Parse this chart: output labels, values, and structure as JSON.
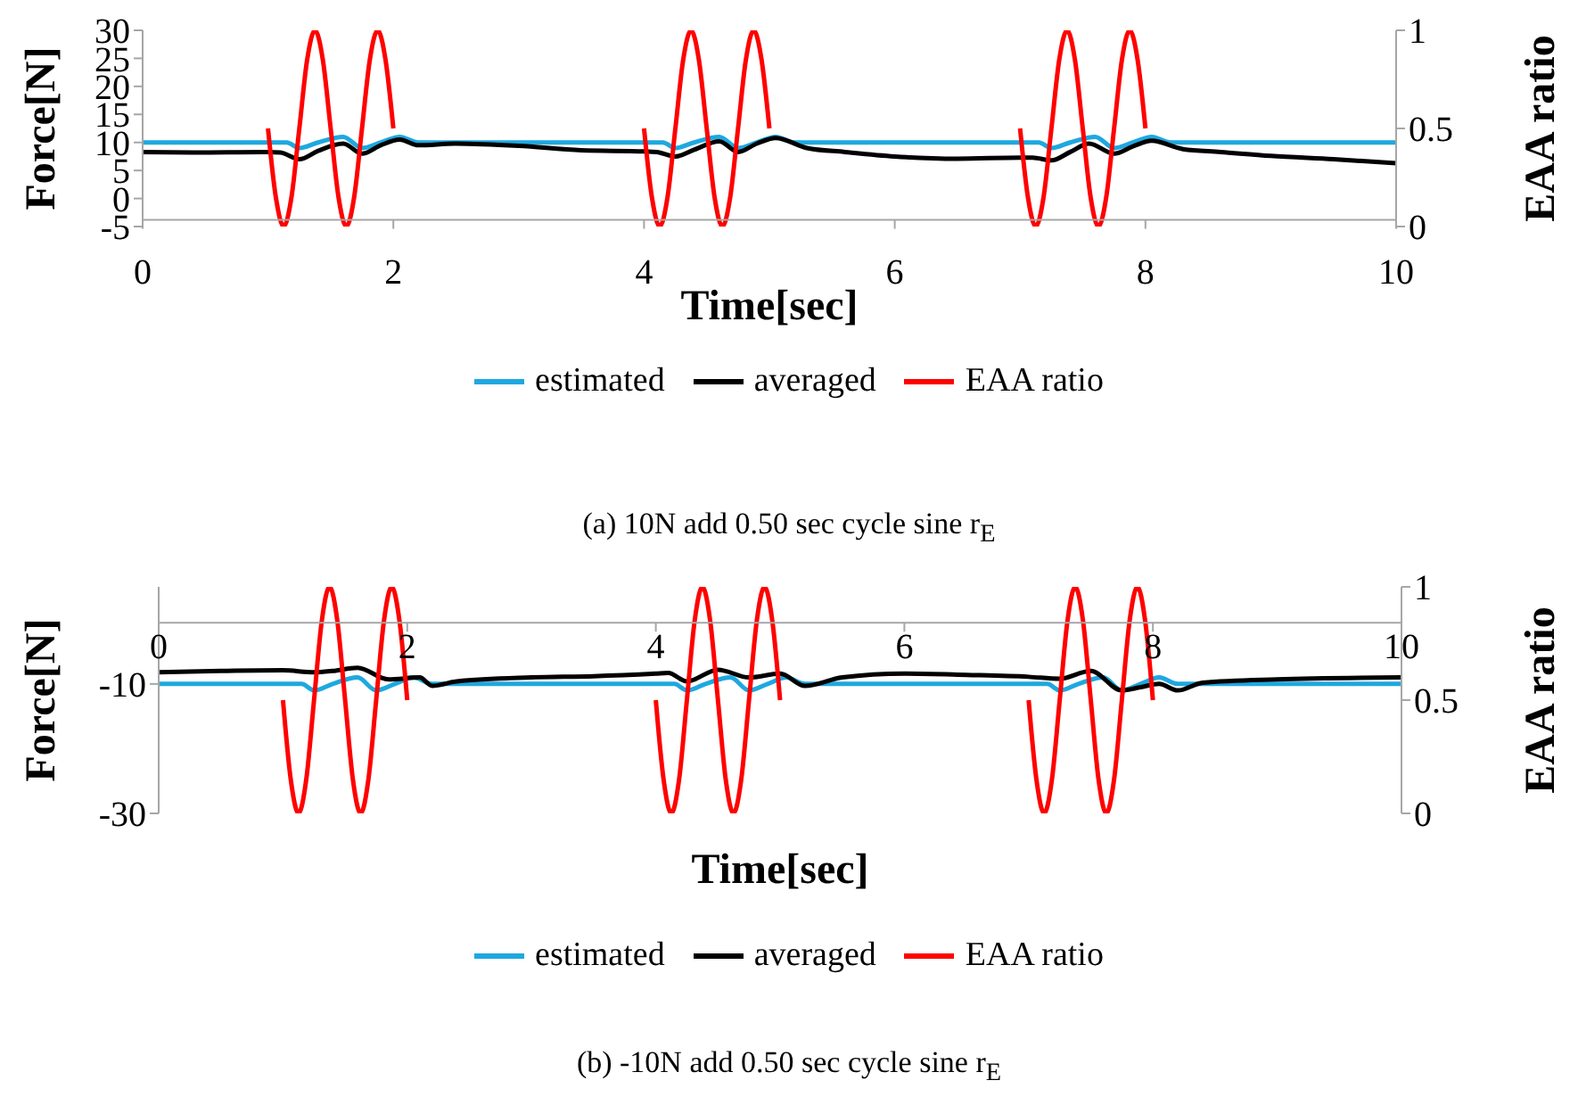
{
  "chart_data": [
    {
      "type": "line",
      "xlabel": "Time[sec]",
      "ylabel": "Force[N]",
      "y2label": "EAA ratio",
      "annotations": [
        "(a)  10N add 0.50 sec cycle sine r$_{E}$"
      ],
      "xlim": [
        0,
        10
      ],
      "xticks": [
        0,
        2,
        4,
        6,
        8,
        10
      ],
      "ylim": [
        -5,
        30
      ],
      "yticks": [
        -5,
        0,
        5,
        10,
        15,
        20,
        25,
        30
      ],
      "y2lim": [
        0,
        1
      ],
      "y2ticks": [
        0,
        0.5,
        1
      ],
      "legend": "bottom",
      "marker": "none",
      "series": [
        {
          "name": "estimated",
          "color": "#1ea8e0",
          "x": [
            0,
            1.15,
            1.25,
            1.4,
            1.6,
            1.75,
            1.9,
            2.05,
            2.2,
            4.15,
            4.25,
            4.4,
            4.6,
            4.75,
            4.9,
            5.05,
            5.2,
            7.15,
            7.25,
            7.4,
            7.6,
            7.75,
            7.9,
            8.05,
            8.2,
            10
          ],
          "values": [
            10,
            10,
            9,
            10,
            11,
            9,
            10,
            11,
            10,
            10,
            9,
            10,
            11,
            9,
            10,
            11,
            10,
            10,
            9,
            10,
            11,
            9,
            10,
            11,
            10,
            10
          ]
        },
        {
          "name": "averaged",
          "color": "#000000",
          "x": [
            0,
            0.5,
            1,
            1.1,
            1.25,
            1.4,
            1.6,
            1.75,
            1.9,
            2.05,
            2.2,
            2.5,
            3,
            3.5,
            4,
            4.1,
            4.25,
            4.4,
            4.6,
            4.75,
            4.9,
            5.05,
            5.3,
            5.6,
            6,
            6.5,
            7,
            7.1,
            7.25,
            7.4,
            7.55,
            7.75,
            7.9,
            8.05,
            8.3,
            8.6,
            9,
            9.5,
            10
          ],
          "values": [
            8.3,
            8.2,
            8.3,
            8.2,
            7,
            8.5,
            9.8,
            8,
            9.5,
            10.5,
            9.5,
            9.8,
            9.4,
            8.6,
            8.4,
            8.3,
            7.5,
            8.7,
            10.2,
            8.3,
            9.8,
            10.8,
            9,
            8.3,
            7.5,
            7.1,
            7.3,
            7.3,
            6.8,
            8.3,
            9.8,
            8,
            9.3,
            10.3,
            8.8,
            8.3,
            7.6,
            7,
            6.3
          ]
        },
        {
          "name": "EAA ratio",
          "color": "#ff0000",
          "axis": "y2",
          "x": [
            1,
            1.0625,
            1.125,
            1.1875,
            1.25,
            1.3125,
            1.375,
            1.4375,
            1.5,
            1.5625,
            1.625,
            1.6875,
            1.75,
            1.8125,
            1.875,
            1.9375,
            2,
            3,
            4,
            4.0625,
            4.125,
            4.1875,
            4.25,
            4.3125,
            4.375,
            4.4375,
            4.5,
            4.5625,
            4.625,
            4.6875,
            4.75,
            4.8125,
            4.875,
            4.9375,
            5,
            6,
            7,
            7.0625,
            7.125,
            7.1875,
            7.25,
            7.3125,
            7.375,
            7.4375,
            7.5,
            7.5625,
            7.625,
            7.6875,
            7.75,
            7.8125,
            7.875,
            7.9375,
            8
          ],
          "values": [
            0.5,
            0.15,
            0,
            0.15,
            0.5,
            0.85,
            1,
            0.85,
            0.5,
            0.15,
            0,
            0.15,
            0.5,
            0.85,
            1,
            0.85,
            0.5,
            null,
            0.5,
            0.15,
            0,
            0.15,
            0.5,
            0.85,
            1,
            0.85,
            0.5,
            0.15,
            0,
            0.15,
            0.5,
            0.85,
            1,
            0.85,
            0.5,
            null,
            0.5,
            0.15,
            0,
            0.15,
            0.5,
            0.85,
            1,
            0.85,
            0.5,
            0.15,
            0,
            0.15,
            0.5,
            0.85,
            1,
            0.85,
            0.5
          ]
        }
      ]
    },
    {
      "type": "line",
      "xlabel": "Time[sec]",
      "ylabel": "Force[N]",
      "y2label": "EAA ratio",
      "annotations": [
        "(b)  -10N add 0.50 sec cycle sine r$_{E}$"
      ],
      "xlim": [
        0,
        10
      ],
      "xticks": [
        0,
        2,
        4,
        6,
        8,
        10
      ],
      "ylim": [
        -30,
        5
      ],
      "yticks": [
        -30,
        -10
      ],
      "y2lim": [
        0,
        1
      ],
      "y2ticks": [
        0,
        0.5,
        1
      ],
      "legend": "bottom",
      "marker": "none",
      "series": [
        {
          "name": "estimated",
          "color": "#1ea8e0",
          "x": [
            0,
            1.15,
            1.25,
            1.4,
            1.6,
            1.75,
            1.9,
            2.05,
            2.2,
            4.15,
            4.25,
            4.4,
            4.6,
            4.75,
            4.9,
            5.05,
            5.2,
            7.15,
            7.25,
            7.4,
            7.6,
            7.75,
            7.9,
            8.05,
            8.2,
            10
          ],
          "values": [
            -10,
            -10,
            -11,
            -10,
            -9,
            -11,
            -10,
            -9,
            -10,
            -10,
            -11,
            -10,
            -9,
            -11,
            -10,
            -9,
            -10,
            -10,
            -11,
            -10,
            -9,
            -11,
            -10,
            -9,
            -10,
            -10
          ]
        },
        {
          "name": "averaged",
          "color": "#000000",
          "x": [
            0,
            0.5,
            1,
            1.25,
            1.4,
            1.6,
            1.85,
            2.1,
            2.2,
            2.4,
            3,
            3.5,
            4,
            4.1,
            4.25,
            4.5,
            4.75,
            5,
            5.2,
            5.5,
            6,
            6.5,
            7,
            7.25,
            7.5,
            7.75,
            7.9,
            8.05,
            8.2,
            8.4,
            9,
            10
          ],
          "values": [
            -8.2,
            -8,
            -7.9,
            -8.2,
            -8,
            -7.5,
            -9.3,
            -9,
            -10.3,
            -9.6,
            -9,
            -8.8,
            -8.4,
            -8.3,
            -9.6,
            -7.8,
            -9,
            -8.4,
            -10.3,
            -9,
            -8.4,
            -8.6,
            -8.9,
            -9.2,
            -8,
            -11,
            -10.5,
            -10,
            -11,
            -9.8,
            -9.3,
            -9
          ]
        },
        {
          "name": "EAA ratio",
          "color": "#ff0000",
          "axis": "y2",
          "x": [
            1,
            1.0625,
            1.125,
            1.1875,
            1.25,
            1.3125,
            1.375,
            1.4375,
            1.5,
            1.5625,
            1.625,
            1.6875,
            1.75,
            1.8125,
            1.875,
            1.9375,
            2,
            3,
            4,
            4.0625,
            4.125,
            4.1875,
            4.25,
            4.3125,
            4.375,
            4.4375,
            4.5,
            4.5625,
            4.625,
            4.6875,
            4.75,
            4.8125,
            4.875,
            4.9375,
            5,
            6,
            7,
            7.0625,
            7.125,
            7.1875,
            7.25,
            7.3125,
            7.375,
            7.4375,
            7.5,
            7.5625,
            7.625,
            7.6875,
            7.75,
            7.8125,
            7.875,
            7.9375,
            8
          ],
          "values": [
            0.5,
            0.15,
            0,
            0.15,
            0.5,
            0.85,
            1,
            0.85,
            0.5,
            0.15,
            0,
            0.15,
            0.5,
            0.85,
            1,
            0.85,
            0.5,
            null,
            0.5,
            0.15,
            0,
            0.15,
            0.5,
            0.85,
            1,
            0.85,
            0.5,
            0.15,
            0,
            0.15,
            0.5,
            0.85,
            1,
            0.85,
            0.5,
            null,
            0.5,
            0.15,
            0,
            0.15,
            0.5,
            0.85,
            1,
            0.85,
            0.5,
            0.15,
            0,
            0.15,
            0.5,
            0.85,
            1,
            0.85,
            0.5
          ]
        }
      ]
    }
  ]
}
